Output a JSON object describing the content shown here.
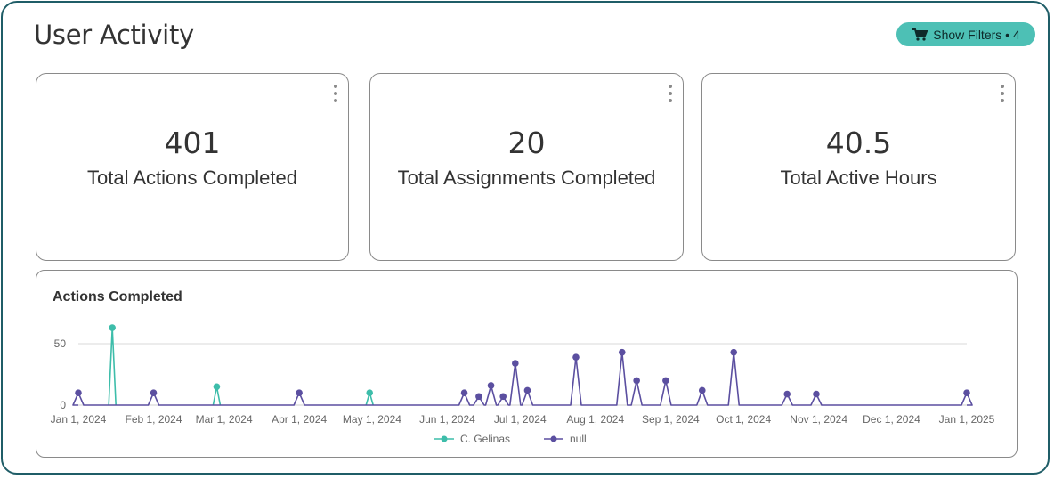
{
  "page": {
    "title": "User Activity"
  },
  "filters": {
    "label": "Show Filters • 4",
    "icon": "filter-cart-icon"
  },
  "cards": [
    {
      "value": "401",
      "label": "Total Actions Completed"
    },
    {
      "value": "20",
      "label": "Total Assignments Completed"
    },
    {
      "value": "40.5",
      "label": "Total Active Hours"
    }
  ],
  "colors": {
    "frame": "#1f5d67",
    "accent": "#4dc0b5",
    "series_teal": "#3dbdaa",
    "series_purple": "#5b4fa0"
  },
  "chart": {
    "title": "Actions Completed"
  },
  "chart_data": {
    "type": "line",
    "title": "Actions Completed",
    "xlabel": "",
    "ylabel": "",
    "ylim": [
      0,
      60
    ],
    "yticks": [
      0,
      50
    ],
    "xlim": [
      "2024-01-01",
      "2025-01-01"
    ],
    "xticks": [
      {
        "date": "2024-01-01",
        "label": "Jan 1, 2024"
      },
      {
        "date": "2024-02-01",
        "label": "Feb 1, 2024"
      },
      {
        "date": "2024-03-01",
        "label": "Mar 1, 2024"
      },
      {
        "date": "2024-04-01",
        "label": "Apr 1, 2024"
      },
      {
        "date": "2024-05-01",
        "label": "May 1, 2024"
      },
      {
        "date": "2024-06-01",
        "label": "Jun 1, 2024"
      },
      {
        "date": "2024-07-01",
        "label": "Jul 1, 2024"
      },
      {
        "date": "2024-08-01",
        "label": "Aug 1, 2024"
      },
      {
        "date": "2024-09-01",
        "label": "Sep 1, 2024"
      },
      {
        "date": "2024-10-01",
        "label": "Oct 1, 2024"
      },
      {
        "date": "2024-11-01",
        "label": "Nov 1, 2024"
      },
      {
        "date": "2024-12-01",
        "label": "Dec 1, 2024"
      },
      {
        "date": "2025-01-01",
        "label": "Jan 1, 2025"
      }
    ],
    "grid": true,
    "legend": "bottom",
    "series": [
      {
        "name": "C. Gelinas",
        "color": "#3dbdaa",
        "points": [
          {
            "x": "2024-01-15",
            "y": 63
          },
          {
            "x": "2024-02-27",
            "y": 15
          },
          {
            "x": "2024-04-30",
            "y": 10
          }
        ]
      },
      {
        "name": "null",
        "color": "#5b4fa0",
        "points": [
          {
            "x": "2024-01-01",
            "y": 10
          },
          {
            "x": "2024-02-01",
            "y": 10
          },
          {
            "x": "2024-04-01",
            "y": 10
          },
          {
            "x": "2024-06-08",
            "y": 10
          },
          {
            "x": "2024-06-14",
            "y": 7
          },
          {
            "x": "2024-06-19",
            "y": 16
          },
          {
            "x": "2024-06-24",
            "y": 7
          },
          {
            "x": "2024-06-29",
            "y": 34
          },
          {
            "x": "2024-07-04",
            "y": 12
          },
          {
            "x": "2024-07-24",
            "y": 39
          },
          {
            "x": "2024-08-12",
            "y": 43
          },
          {
            "x": "2024-08-18",
            "y": 20
          },
          {
            "x": "2024-08-30",
            "y": 20
          },
          {
            "x": "2024-09-14",
            "y": 12
          },
          {
            "x": "2024-09-27",
            "y": 43
          },
          {
            "x": "2024-10-19",
            "y": 9
          },
          {
            "x": "2024-10-31",
            "y": 9
          },
          {
            "x": "2025-01-01",
            "y": 10
          }
        ]
      }
    ]
  }
}
